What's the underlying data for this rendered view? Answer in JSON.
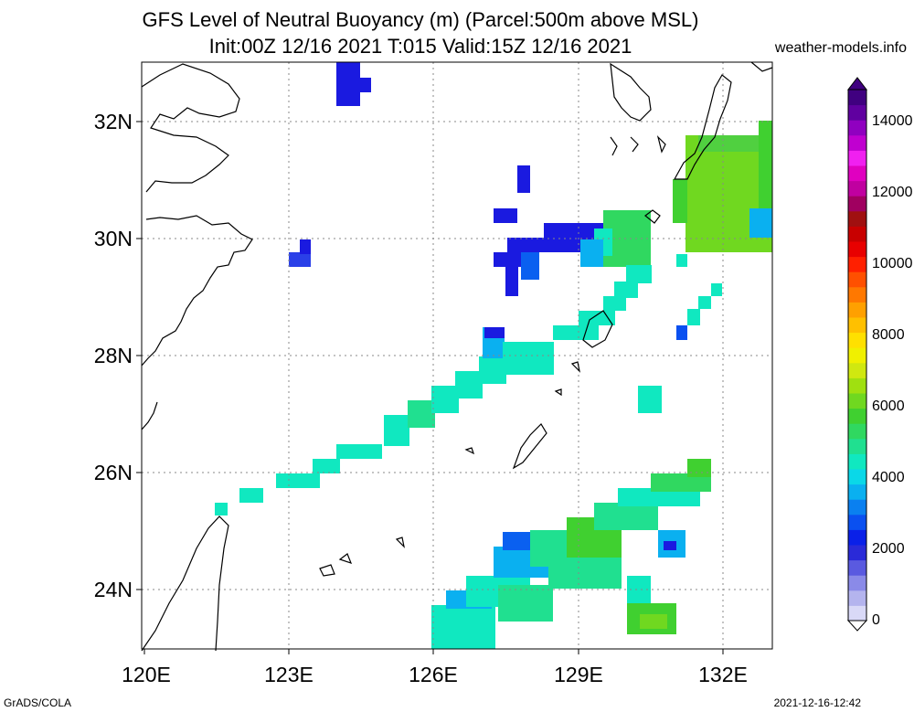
{
  "title_line1": "GFS Level of Neutral Buoyancy (m) (Parcel:500m above MSL)",
  "title_line2": "Init:00Z 12/16 2021 T:015 Valid:15Z 12/16 2021",
  "site": "weather-models.info",
  "lat_labels": [
    "32N",
    "30N",
    "28N",
    "26N",
    "24N"
  ],
  "lon_labels": [
    "120E",
    "123E",
    "126E",
    "129E",
    "132E"
  ],
  "colorbar_labels": [
    "14000",
    "12000",
    "10000",
    "8000",
    "6000",
    "4000",
    "2000",
    "0"
  ],
  "colorbar_colors": [
    "#d9d9f7",
    "#b4b4ee",
    "#8a8ae8",
    "#5a5ae0",
    "#2a2ad8",
    "#0a20e8",
    "#0a50f0",
    "#0a80f0",
    "#0ab0f0",
    "#0ad8e8",
    "#10e8c0",
    "#20e090",
    "#30d860",
    "#40d030",
    "#70d820",
    "#a0e010",
    "#d0e810",
    "#f0f000",
    "#ffe000",
    "#ffc000",
    "#ffa000",
    "#ff7800",
    "#ff5000",
    "#ff2000",
    "#e80000",
    "#c80000",
    "#a01010",
    "#a00060",
    "#c000a0",
    "#e000c0",
    "#f020f0",
    "#c000d0",
    "#9000c0",
    "#6000a0",
    "#400080"
  ],
  "footer_left": "GrADS/COLA",
  "footer_right": "2021-12-16-12:42"
}
